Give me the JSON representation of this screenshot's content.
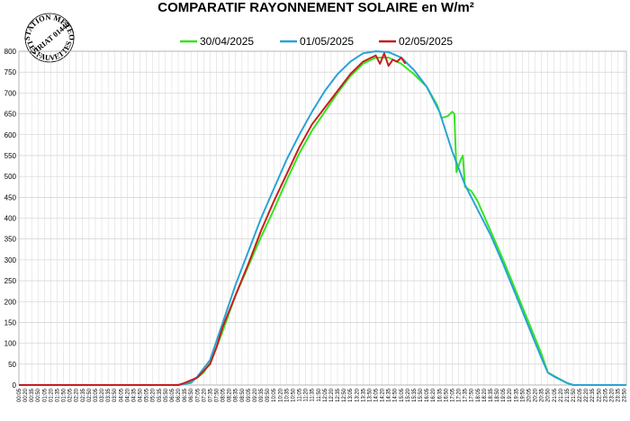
{
  "station_stamp": {
    "line1": "STATION METEO",
    "line2": "VIRIAT 01440",
    "line3": "LES FAUVETTES"
  },
  "chart_data": {
    "type": "line",
    "title": "COMPARATIF RAYONNEMENT SOLAIRE en W/m²",
    "xlabel": "",
    "ylabel": "",
    "ylim": [
      0,
      800
    ],
    "yticks": [
      0,
      50,
      100,
      150,
      200,
      250,
      300,
      350,
      400,
      450,
      500,
      550,
      600,
      650,
      700,
      750,
      800
    ],
    "x_tick_labels": [
      "00:05",
      "00:20",
      "00:35",
      "00:50",
      "01:05",
      "01:20",
      "01:35",
      "01:50",
      "02:05",
      "02:20",
      "02:35",
      "02:50",
      "03:05",
      "03:20",
      "03:35",
      "03:50",
      "04:05",
      "04:20",
      "04:35",
      "04:50",
      "05:05",
      "05:20",
      "05:35",
      "05:50",
      "06:05",
      "06:20",
      "06:35",
      "06:50",
      "07:05",
      "07:20",
      "07:35",
      "07:50",
      "08:05",
      "08:20",
      "08:35",
      "08:50",
      "09:05",
      "09:20",
      "09:35",
      "09:50",
      "10:05",
      "10:20",
      "10:35",
      "10:50",
      "11:05",
      "11:20",
      "11:35",
      "11:50",
      "12:05",
      "12:20",
      "12:35",
      "12:50",
      "13:05",
      "13:20",
      "13:35",
      "13:50",
      "14:05",
      "14:20",
      "14:35",
      "14:50",
      "15:05",
      "15:20",
      "15:35",
      "15:50",
      "16:05",
      "16:20",
      "16:35",
      "16:50",
      "17:05",
      "17:20",
      "17:35",
      "17:50",
      "18:05",
      "18:20",
      "18:35",
      "18:50",
      "19:05",
      "19:20",
      "19:35",
      "19:50",
      "20:05",
      "20:20",
      "20:35",
      "20:50",
      "21:05",
      "21:20",
      "21:35",
      "21:50",
      "22:05",
      "22:20",
      "22:35",
      "22:50",
      "23:05",
      "23:20",
      "23:35",
      "23:50"
    ],
    "grid": true,
    "legend_position": "top",
    "series": [
      {
        "name": "30/04/2025",
        "color": "#33e61e",
        "points": [
          [
            "00:05",
            0
          ],
          [
            "06:20",
            0
          ],
          [
            "06:50",
            8
          ],
          [
            "07:05",
            18
          ],
          [
            "07:20",
            30
          ],
          [
            "07:35",
            55
          ],
          [
            "07:50",
            90
          ],
          [
            "08:05",
            130
          ],
          [
            "08:35",
            215
          ],
          [
            "09:05",
            285
          ],
          [
            "09:35",
            355
          ],
          [
            "10:05",
            420
          ],
          [
            "10:35",
            490
          ],
          [
            "11:05",
            555
          ],
          [
            "11:35",
            610
          ],
          [
            "12:05",
            655
          ],
          [
            "12:35",
            700
          ],
          [
            "13:05",
            740
          ],
          [
            "13:35",
            770
          ],
          [
            "14:05",
            785
          ],
          [
            "14:35",
            785
          ],
          [
            "15:05",
            770
          ],
          [
            "15:35",
            745
          ],
          [
            "16:05",
            715
          ],
          [
            "16:30",
            670
          ],
          [
            "16:40",
            640
          ],
          [
            "16:55",
            645
          ],
          [
            "17:05",
            655
          ],
          [
            "17:10",
            650
          ],
          [
            "17:15",
            510
          ],
          [
            "17:25",
            540
          ],
          [
            "17:30",
            550
          ],
          [
            "17:35",
            475
          ],
          [
            "17:50",
            465
          ],
          [
            "18:05",
            440
          ],
          [
            "18:35",
            370
          ],
          [
            "19:05",
            300
          ],
          [
            "19:35",
            225
          ],
          [
            "20:05",
            150
          ],
          [
            "20:35",
            75
          ],
          [
            "20:50",
            30
          ],
          [
            "21:35",
            5
          ],
          [
            "21:50",
            0
          ],
          [
            "23:55",
            0
          ]
        ]
      },
      {
        "name": "01/05/2025",
        "color": "#2aa3d6",
        "points": [
          [
            "00:05",
            0
          ],
          [
            "06:20",
            0
          ],
          [
            "06:50",
            5
          ],
          [
            "07:05",
            20
          ],
          [
            "07:35",
            60
          ],
          [
            "08:05",
            150
          ],
          [
            "08:35",
            240
          ],
          [
            "09:05",
            320
          ],
          [
            "09:35",
            400
          ],
          [
            "10:05",
            470
          ],
          [
            "10:35",
            540
          ],
          [
            "11:05",
            600
          ],
          [
            "11:35",
            655
          ],
          [
            "12:05",
            705
          ],
          [
            "12:35",
            745
          ],
          [
            "13:05",
            775
          ],
          [
            "13:35",
            795
          ],
          [
            "14:05",
            800
          ],
          [
            "14:35",
            798
          ],
          [
            "15:05",
            785
          ],
          [
            "15:35",
            755
          ],
          [
            "16:05",
            715
          ],
          [
            "16:35",
            655
          ],
          [
            "17:05",
            560
          ],
          [
            "17:35",
            480
          ],
          [
            "18:05",
            420
          ],
          [
            "18:35",
            360
          ],
          [
            "19:05",
            290
          ],
          [
            "19:35",
            215
          ],
          [
            "20:05",
            140
          ],
          [
            "20:35",
            65
          ],
          [
            "20:50",
            30
          ],
          [
            "21:05",
            20
          ],
          [
            "21:35",
            5
          ],
          [
            "21:50",
            0
          ],
          [
            "23:55",
            0
          ]
        ]
      },
      {
        "name": "02/05/2025",
        "color": "#c81e1e",
        "points": [
          [
            "00:05",
            0
          ],
          [
            "06:20",
            0
          ],
          [
            "06:35",
            5
          ],
          [
            "07:05",
            18
          ],
          [
            "07:35",
            50
          ],
          [
            "07:50",
            90
          ],
          [
            "08:05",
            140
          ],
          [
            "08:35",
            215
          ],
          [
            "09:05",
            290
          ],
          [
            "09:35",
            370
          ],
          [
            "10:05",
            440
          ],
          [
            "10:35",
            505
          ],
          [
            "11:05",
            570
          ],
          [
            "11:35",
            625
          ],
          [
            "12:05",
            665
          ],
          [
            "12:35",
            705
          ],
          [
            "13:05",
            745
          ],
          [
            "13:35",
            775
          ],
          [
            "14:05",
            790
          ],
          [
            "14:15",
            770
          ],
          [
            "14:25",
            795
          ],
          [
            "14:35",
            765
          ],
          [
            "14:45",
            780
          ],
          [
            "14:55",
            775
          ],
          [
            "15:05",
            785
          ],
          [
            "15:15",
            770
          ]
        ]
      }
    ]
  }
}
